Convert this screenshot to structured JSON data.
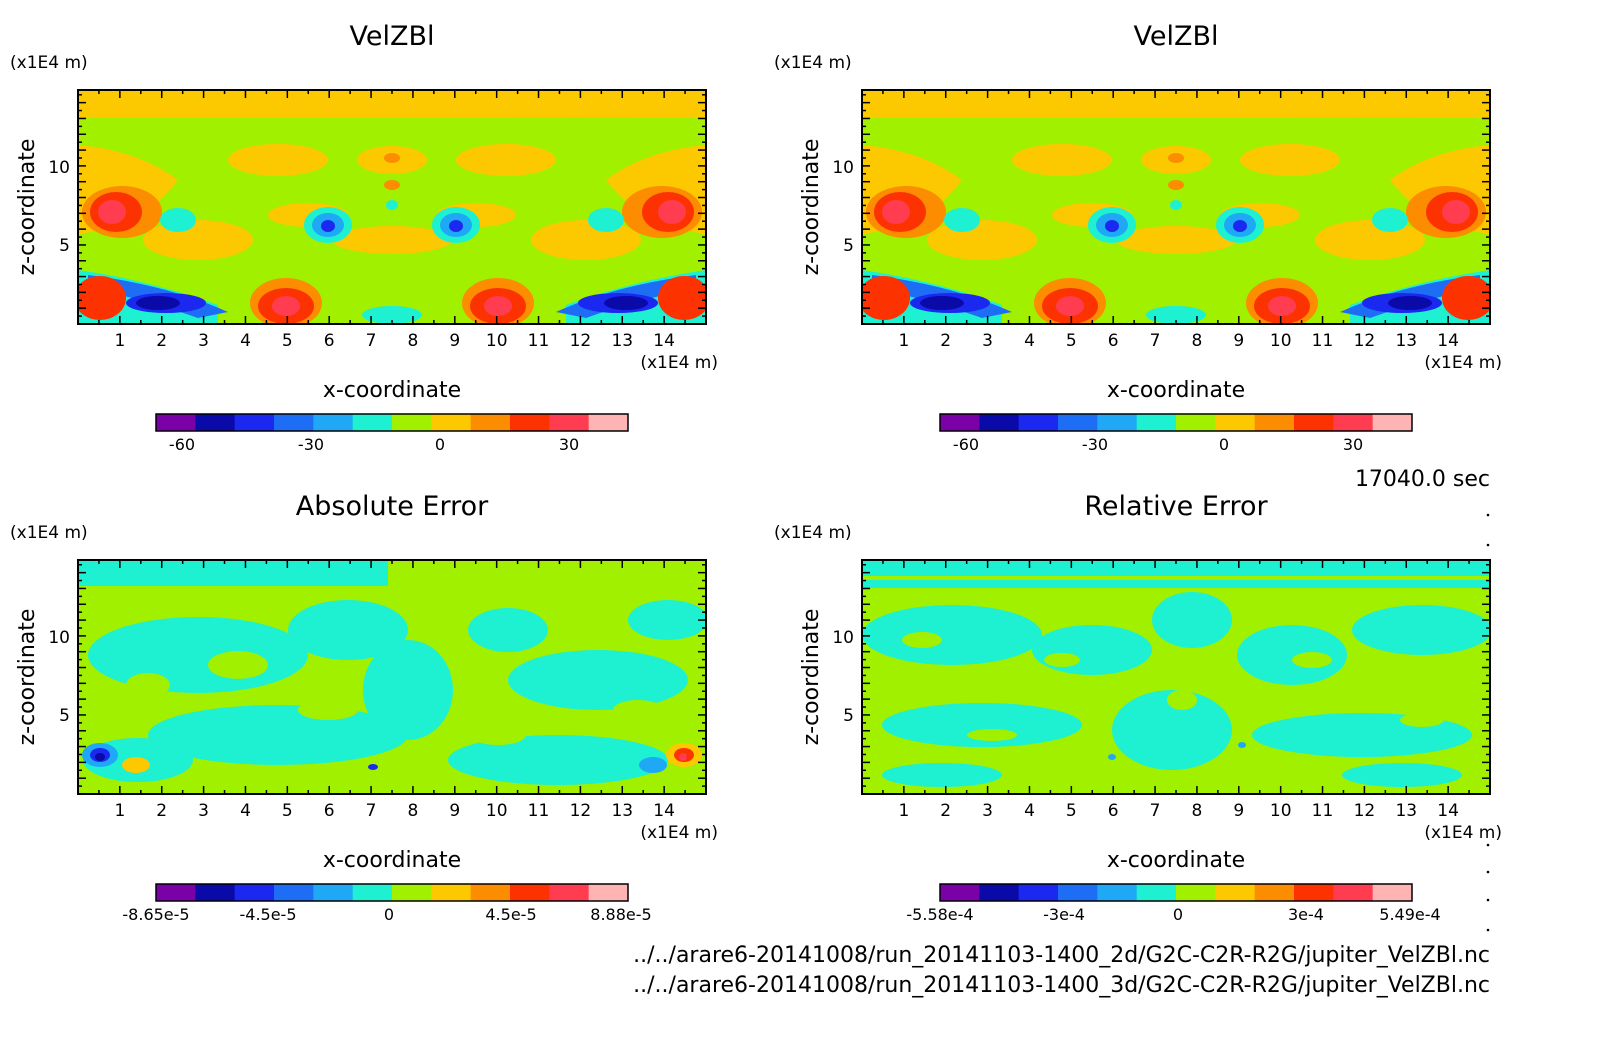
{
  "panels": [
    {
      "title": "VelZBl",
      "z_unit": "(x1E4 m)",
      "x_unit": "(x1E4 m)",
      "xlabel": "x-coordinate",
      "ylabel": "z-coordinate",
      "colorbar_labels": [
        "-60",
        "-30",
        "0",
        "30"
      ]
    },
    {
      "title": "VelZBl",
      "z_unit": "(x1E4 m)",
      "x_unit": "(x1E4 m)",
      "xlabel": "x-coordinate",
      "ylabel": "z-coordinate",
      "colorbar_labels": [
        "-60",
        "-30",
        "0",
        "30"
      ]
    },
    {
      "title": "Absolute Error",
      "z_unit": "(x1E4 m)",
      "x_unit": "(x1E4 m)",
      "xlabel": "x-coordinate",
      "ylabel": "z-coordinate",
      "colorbar_labels": [
        "-8.65e-5",
        "-4.5e-5",
        "0",
        "4.5e-5",
        "8.88e-5"
      ]
    },
    {
      "title": "Relative Error",
      "z_unit": "(x1E4 m)",
      "x_unit": "(x1E4 m)",
      "xlabel": "x-coordinate",
      "ylabel": "z-coordinate",
      "colorbar_labels": [
        "-5.58e-4",
        "-3e-4",
        "0",
        "3e-4",
        "5.49e-4"
      ]
    }
  ],
  "x_tick_labels": [
    "1",
    "2",
    "3",
    "4",
    "5",
    "6",
    "7",
    "8",
    "9",
    "10",
    "11",
    "12",
    "13",
    "14"
  ],
  "z_tick_labels": [
    "5",
    "10"
  ],
  "time_label": "17040.0 sec",
  "file_paths": [
    "../../arare6-20141008/run_20141103-1400_2d/G2C-C2R-R2G/jupiter_VelZBl.nc",
    "../../arare6-20141008/run_20141103-1400_3d/G2C-C2R-R2G/jupiter_VelZBl.nc"
  ],
  "colormap": [
    "#7a00a8",
    "#0a0aa8",
    "#1a28f0",
    "#1e6ef5",
    "#1ea8f5",
    "#1ef0d2",
    "#a0f000",
    "#fcc800",
    "#fc8c00",
    "#fc3200",
    "#ff3c50",
    "#ffb4b4"
  ],
  "chart_data": [
    {
      "type": "heatmap",
      "title": "VelZBl",
      "xlabel": "x-coordinate",
      "ylabel": "z-coordinate",
      "xlim": [
        0,
        15
      ],
      "ylim": [
        0,
        15
      ],
      "x_ticks": [
        1,
        2,
        3,
        4,
        5,
        6,
        7,
        8,
        9,
        10,
        11,
        12,
        13,
        14
      ],
      "z_ticks": [
        5,
        10
      ],
      "colorbar_ticks": [
        -60,
        -30,
        0,
        30
      ],
      "field": [
        {
          "x": 2.3,
          "z": 1.2,
          "value": -50
        },
        {
          "x": 1.4,
          "z": 2.0,
          "value": -40
        },
        {
          "x": 12.7,
          "z": 1.2,
          "value": -50
        },
        {
          "x": 13.6,
          "z": 2.0,
          "value": -40
        },
        {
          "x": 0.7,
          "z": 1.5,
          "value": 35
        },
        {
          "x": 14.3,
          "z": 1.5,
          "value": 35
        },
        {
          "x": 5.0,
          "z": 1.2,
          "value": 40
        },
        {
          "x": 10.0,
          "z": 1.2,
          "value": 40
        },
        {
          "x": 0.8,
          "z": 7.0,
          "value": 35
        },
        {
          "x": 14.2,
          "z": 7.0,
          "value": 35
        },
        {
          "x": 6.0,
          "z": 6.5,
          "value": -35
        },
        {
          "x": 9.0,
          "z": 6.5,
          "value": -35
        },
        {
          "x": 7.5,
          "z": 12.0,
          "value": 8
        },
        {
          "x": 7.5,
          "z": 14.5,
          "value": 10
        }
      ]
    },
    {
      "type": "heatmap",
      "title": "VelZBl",
      "xlabel": "x-coordinate",
      "ylabel": "z-coordinate",
      "xlim": [
        0,
        15
      ],
      "ylim": [
        0,
        15
      ],
      "x_ticks": [
        1,
        2,
        3,
        4,
        5,
        6,
        7,
        8,
        9,
        10,
        11,
        12,
        13,
        14
      ],
      "z_ticks": [
        5,
        10
      ],
      "colorbar_ticks": [
        -60,
        -30,
        0,
        30
      ],
      "field": [
        {
          "x": 2.3,
          "z": 1.2,
          "value": -50
        },
        {
          "x": 1.4,
          "z": 2.0,
          "value": -40
        },
        {
          "x": 12.7,
          "z": 1.2,
          "value": -50
        },
        {
          "x": 13.6,
          "z": 2.0,
          "value": -40
        },
        {
          "x": 0.7,
          "z": 1.5,
          "value": 35
        },
        {
          "x": 14.3,
          "z": 1.5,
          "value": 35
        },
        {
          "x": 5.0,
          "z": 1.2,
          "value": 40
        },
        {
          "x": 10.0,
          "z": 1.2,
          "value": 40
        },
        {
          "x": 0.8,
          "z": 7.0,
          "value": 35
        },
        {
          "x": 14.2,
          "z": 7.0,
          "value": 35
        },
        {
          "x": 6.0,
          "z": 6.5,
          "value": -35
        },
        {
          "x": 9.0,
          "z": 6.5,
          "value": -35
        },
        {
          "x": 7.5,
          "z": 12.0,
          "value": 8
        },
        {
          "x": 7.5,
          "z": 14.5,
          "value": 10
        }
      ]
    },
    {
      "type": "heatmap",
      "title": "Absolute Error",
      "xlabel": "x-coordinate",
      "ylabel": "z-coordinate",
      "xlim": [
        0,
        15
      ],
      "ylim": [
        0,
        15
      ],
      "x_ticks": [
        1,
        2,
        3,
        4,
        5,
        6,
        7,
        8,
        9,
        10,
        11,
        12,
        13,
        14
      ],
      "z_ticks": [
        5,
        10
      ],
      "colorbar_ticks": [
        -8.65e-05,
        -4.5e-05,
        0,
        4.5e-05,
        8.88e-05
      ],
      "field": [
        {
          "x": 0.6,
          "z": 2.7,
          "value": -8e-05
        },
        {
          "x": 1.4,
          "z": 2.2,
          "value": 3e-05
        },
        {
          "x": 14.4,
          "z": 2.7,
          "value": 8e-05
        },
        {
          "x": 13.6,
          "z": 2.2,
          "value": -3e-05
        }
      ]
    },
    {
      "type": "heatmap",
      "title": "Relative Error",
      "xlabel": "x-coordinate",
      "ylabel": "z-coordinate",
      "xlim": [
        0,
        15
      ],
      "ylim": [
        0,
        15
      ],
      "x_ticks": [
        1,
        2,
        3,
        4,
        5,
        6,
        7,
        8,
        9,
        10,
        11,
        12,
        13,
        14
      ],
      "z_ticks": [
        5,
        10
      ],
      "colorbar_ticks": [
        -0.000558,
        -0.0003,
        0,
        0.0003,
        0.000549
      ]
    }
  ]
}
